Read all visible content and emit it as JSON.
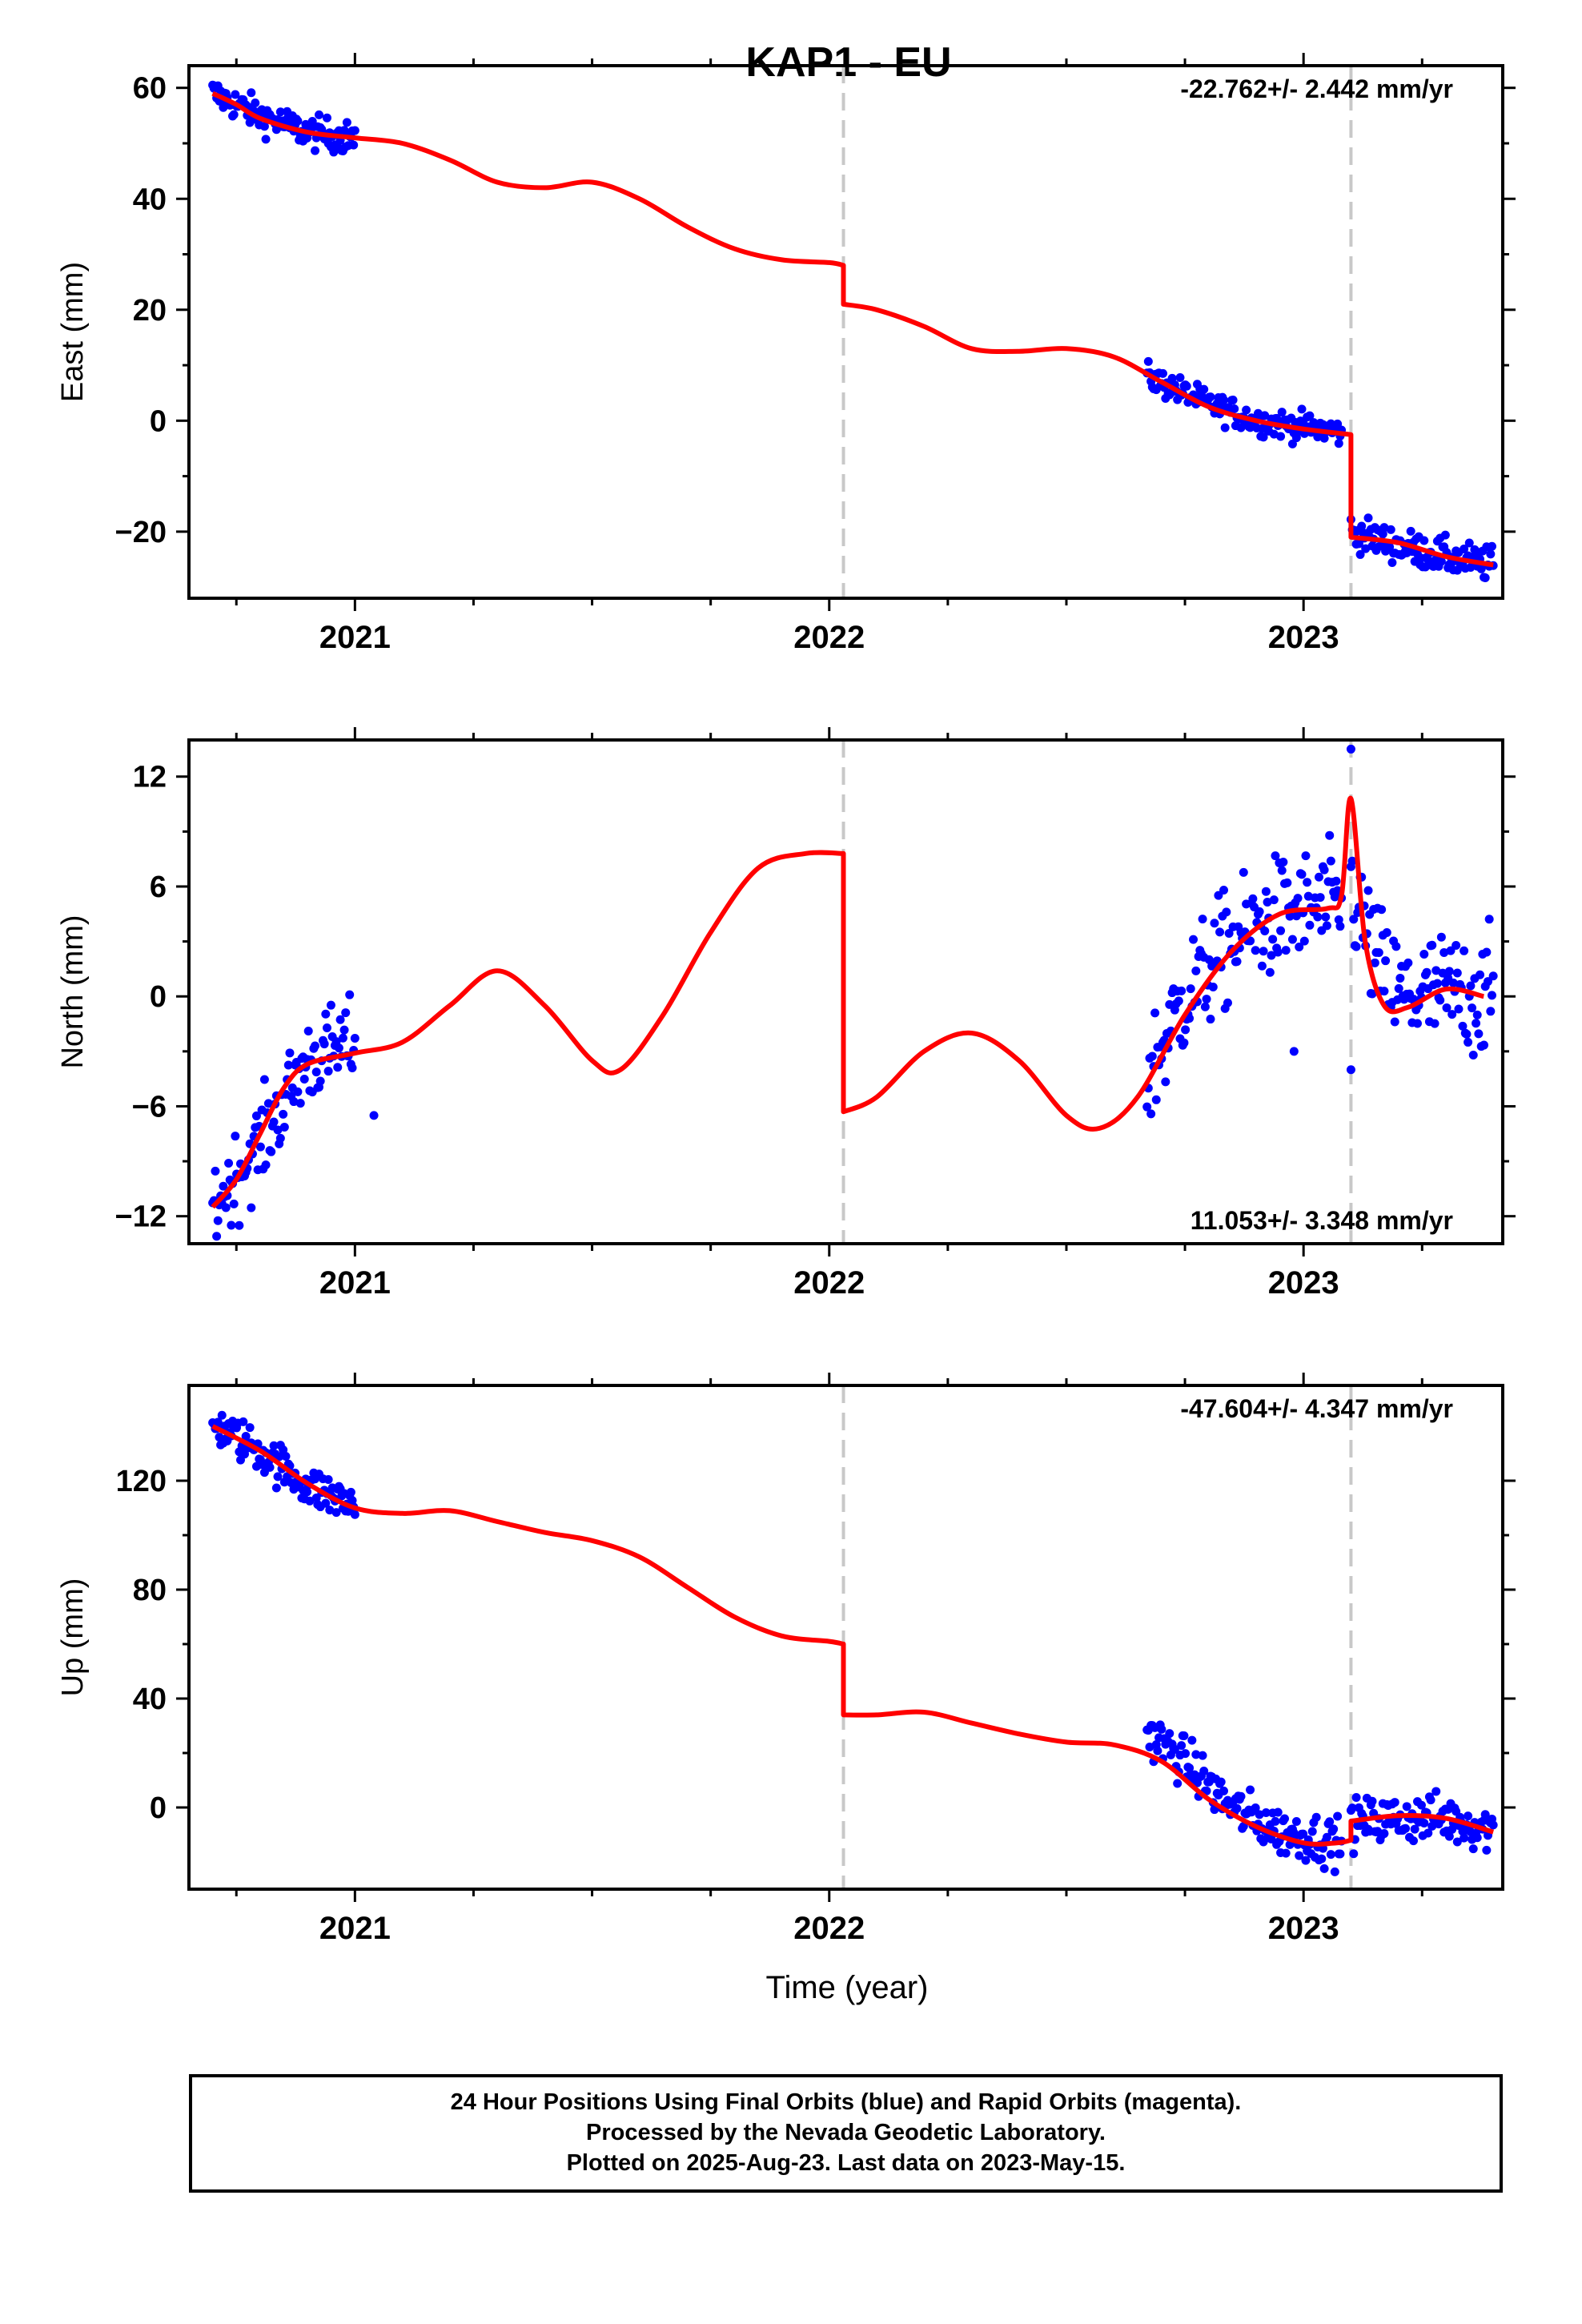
{
  "title": "KAP1 - EU",
  "xlabel": "Time (year)",
  "footer": {
    "line1": "24 Hour Positions Using Final Orbits (blue) and Rapid Orbits (magenta).",
    "line2": "Processed by the Nevada Geodetic Laboratory.",
    "line3": "Plotted on 2025-Aug-23. Last data on 2023-May-15."
  },
  "colors": {
    "observations": "#0000ff",
    "model": "#ff0000",
    "event_lines": "#c8c8c8",
    "frame": "#000000"
  },
  "chart_data": [
    {
      "type": "scatter",
      "component": "East",
      "ylabel": "East (mm)",
      "rate_label": "-22.762+/- 2.442 mm/yr",
      "rate_label_placement": "top-right",
      "xlim": [
        2020.65,
        2023.42
      ],
      "ylim": [
        -32,
        64
      ],
      "yticks": [
        -20,
        0,
        20,
        40,
        60
      ],
      "xticks": [
        2021,
        2022,
        2023
      ],
      "event_lines_x": [
        2022.03,
        2023.1
      ],
      "model": {
        "name": "model",
        "x": [
          2020.7,
          2020.75,
          2020.8,
          2020.9,
          2021.0,
          2021.1,
          2021.2,
          2021.3,
          2021.4,
          2021.5,
          2021.6,
          2021.7,
          2021.8,
          2021.9,
          2022.0,
          2022.03,
          2022.03,
          2022.1,
          2022.2,
          2022.3,
          2022.4,
          2022.5,
          2022.6,
          2022.7,
          2022.8,
          2022.9,
          2023.0,
          2023.1,
          2023.1,
          2023.2,
          2023.3,
          2023.4
        ],
        "y": [
          59,
          57,
          54.5,
          52,
          51,
          50,
          47,
          43,
          42,
          43,
          40,
          35,
          31,
          29,
          28.5,
          28,
          21,
          20,
          17,
          13,
          12.5,
          13,
          11.5,
          7,
          2.5,
          0,
          -1.5,
          -2.5,
          -21,
          -22,
          -24.5,
          -26
        ]
      },
      "observations": {
        "name": "observations",
        "segments": [
          {
            "x_range": [
              2020.7,
              2021.0
            ],
            "trend": [
              [
                2020.7,
                59
              ],
              [
                2020.8,
                55
              ],
              [
                2020.9,
                52
              ],
              [
                2021.0,
                51
              ]
            ],
            "scatter_mm": 1.5
          },
          {
            "x_range": [
              2022.67,
              2023.08
            ],
            "trend": [
              [
                2022.67,
                8
              ],
              [
                2022.8,
                3
              ],
              [
                2022.9,
                0
              ],
              [
                2023.08,
                -2
              ]
            ],
            "scatter_mm": 1.3
          },
          {
            "x_range": [
              2023.1,
              2023.4
            ],
            "trend": [
              [
                2023.1,
                -20
              ],
              [
                2023.2,
                -22.5
              ],
              [
                2023.3,
                -24.5
              ],
              [
                2023.4,
                -26
              ]
            ],
            "scatter_mm": 1.6
          }
        ]
      }
    },
    {
      "type": "scatter",
      "component": "North",
      "ylabel": "North (mm)",
      "rate_label": "11.053+/- 3.348 mm/yr",
      "rate_label_placement": "bottom-right",
      "xlim": [
        2020.65,
        2023.42
      ],
      "ylim": [
        -13.5,
        14
      ],
      "yticks": [
        -12,
        -6,
        0,
        6,
        12
      ],
      "xticks": [
        2021,
        2022,
        2023
      ],
      "event_lines_x": [
        2022.03,
        2023.1
      ],
      "model": {
        "name": "model",
        "x": [
          2020.7,
          2020.75,
          2020.8,
          2020.85,
          2020.9,
          2021.0,
          2021.1,
          2021.2,
          2021.3,
          2021.4,
          2021.5,
          2021.56,
          2021.65,
          2021.75,
          2021.85,
          2021.95,
          2022.03,
          2022.03,
          2022.1,
          2022.2,
          2022.3,
          2022.4,
          2022.5,
          2022.57,
          2022.65,
          2022.75,
          2022.85,
          2022.95,
          2023.05,
          2023.08,
          2023.1,
          2023.13,
          2023.17,
          2023.22,
          2023.3,
          2023.38
        ],
        "y": [
          -11.5,
          -10,
          -7.5,
          -5,
          -3.7,
          -3.1,
          -2.5,
          -0.5,
          1.4,
          -0.5,
          -3.5,
          -4,
          -1,
          3.5,
          7,
          7.8,
          7.8,
          -6.3,
          -5.5,
          -3,
          -2,
          -3.5,
          -6.5,
          -7.2,
          -5.5,
          -1,
          2.5,
          4.5,
          4.8,
          5.5,
          10.8,
          3,
          -0.5,
          -0.6,
          0.4,
          0
        ]
      },
      "observations": {
        "name": "observations",
        "segments": [
          {
            "x_range": [
              2020.7,
              2021.0
            ],
            "trend": [
              [
                2020.7,
                -11.5
              ],
              [
                2020.8,
                -8
              ],
              [
                2020.9,
                -3.5
              ],
              [
                2021.0,
                -2.5
              ]
            ],
            "scatter_mm": 1.2
          },
          {
            "x_range": [
              2022.67,
              2023.08
            ],
            "trend": [
              [
                2022.67,
                -4.5
              ],
              [
                2022.75,
                0
              ],
              [
                2022.85,
                3
              ],
              [
                2022.95,
                4.5
              ],
              [
                2023.08,
                5
              ]
            ],
            "scatter_mm": 1.6
          },
          {
            "x_range": [
              2023.1,
              2023.4
            ],
            "trend": [
              [
                2023.1,
                6
              ],
              [
                2023.15,
                2
              ],
              [
                2023.2,
                0
              ],
              [
                2023.3,
                0.2
              ],
              [
                2023.4,
                0
              ]
            ],
            "scatter_mm": 1.7
          }
        ],
        "outliers": [
          [
            2023.1,
            13.5
          ],
          [
            2023.1,
            -4
          ],
          [
            2022.98,
            -3
          ],
          [
            2021.04,
            -6.5
          ]
        ]
      }
    },
    {
      "type": "scatter",
      "component": "Up",
      "ylabel": "Up (mm)",
      "rate_label": "-47.604+/- 4.347 mm/yr",
      "rate_label_placement": "top-right",
      "xlim": [
        2020.65,
        2023.42
      ],
      "ylim": [
        -30,
        155
      ],
      "yticks": [
        0,
        40,
        80,
        120
      ],
      "xticks": [
        2021,
        2022,
        2023
      ],
      "event_lines_x": [
        2022.03,
        2023.1
      ],
      "model": {
        "name": "model",
        "x": [
          2020.7,
          2020.8,
          2020.9,
          2021.0,
          2021.1,
          2021.2,
          2021.3,
          2021.4,
          2021.5,
          2021.6,
          2021.7,
          2021.8,
          2021.9,
          2022.0,
          2022.03,
          2022.03,
          2022.1,
          2022.2,
          2022.3,
          2022.4,
          2022.5,
          2022.6,
          2022.7,
          2022.8,
          2022.9,
          2023.0,
          2023.07,
          2023.1,
          2023.1,
          2023.2,
          2023.3,
          2023.4
        ],
        "y": [
          140,
          131,
          119,
          110,
          108,
          109,
          105,
          101,
          98,
          92,
          81,
          70,
          63,
          61,
          60,
          34,
          34,
          35,
          31,
          27,
          24,
          23,
          17,
          3,
          -7,
          -13,
          -13,
          -12,
          -5,
          -3,
          -4,
          -9
        ]
      },
      "observations": {
        "name": "observations",
        "segments": [
          {
            "x_range": [
              2020.7,
              2021.0
            ],
            "trend": [
              [
                2020.7,
                141
              ],
              [
                2020.8,
                131
              ],
              [
                2020.9,
                118
              ],
              [
                2021.0,
                111
              ]
            ],
            "scatter_mm": 4
          },
          {
            "x_range": [
              2022.67,
              2023.08
            ],
            "trend": [
              [
                2022.67,
                28
              ],
              [
                2022.75,
                17
              ],
              [
                2022.85,
                0
              ],
              [
                2022.95,
                -9
              ],
              [
                2023.08,
                -13
              ]
            ],
            "scatter_mm": 4.5
          },
          {
            "x_range": [
              2023.1,
              2023.4
            ],
            "trend": [
              [
                2023.1,
                -6
              ],
              [
                2023.2,
                -4
              ],
              [
                2023.3,
                -4
              ],
              [
                2023.4,
                -8
              ]
            ],
            "scatter_mm": 4.5
          }
        ]
      }
    }
  ]
}
